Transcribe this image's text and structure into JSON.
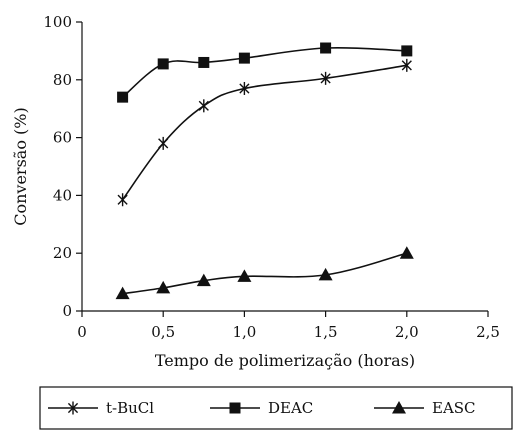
{
  "chart_data": {
    "type": "line",
    "xlabel": "Tempo de polimerização (horas)",
    "ylabel": "Conversão (%)",
    "xlim": [
      0,
      2.5
    ],
    "ylim": [
      0,
      100
    ],
    "x_ticks": [
      "0",
      "0,5",
      "1,0",
      "1,5",
      "2,0",
      "2,5"
    ],
    "y_ticks": [
      "0",
      "20",
      "40",
      "60",
      "80",
      "100"
    ],
    "grid": false,
    "legend_position": "bottom",
    "series": [
      {
        "name": "t-BuCl",
        "marker": "star",
        "color": "#111111",
        "points": [
          [
            0.25,
            38.5
          ],
          [
            0.5,
            58
          ],
          [
            0.75,
            71
          ],
          [
            1.0,
            77
          ],
          [
            1.5,
            80.5
          ],
          [
            2.0,
            85
          ]
        ]
      },
      {
        "name": "DEAC",
        "marker": "square",
        "color": "#111111",
        "points": [
          [
            0.25,
            74
          ],
          [
            0.5,
            85.5
          ],
          [
            0.75,
            86
          ],
          [
            1.0,
            87.5
          ],
          [
            1.5,
            91
          ],
          [
            2.0,
            90
          ]
        ]
      },
      {
        "name": "EASC",
        "marker": "triangle",
        "color": "#111111",
        "points": [
          [
            0.25,
            6
          ],
          [
            0.5,
            8
          ],
          [
            0.75,
            10.5
          ],
          [
            1.0,
            12
          ],
          [
            1.5,
            12.5
          ],
          [
            2.0,
            20
          ]
        ]
      }
    ]
  }
}
